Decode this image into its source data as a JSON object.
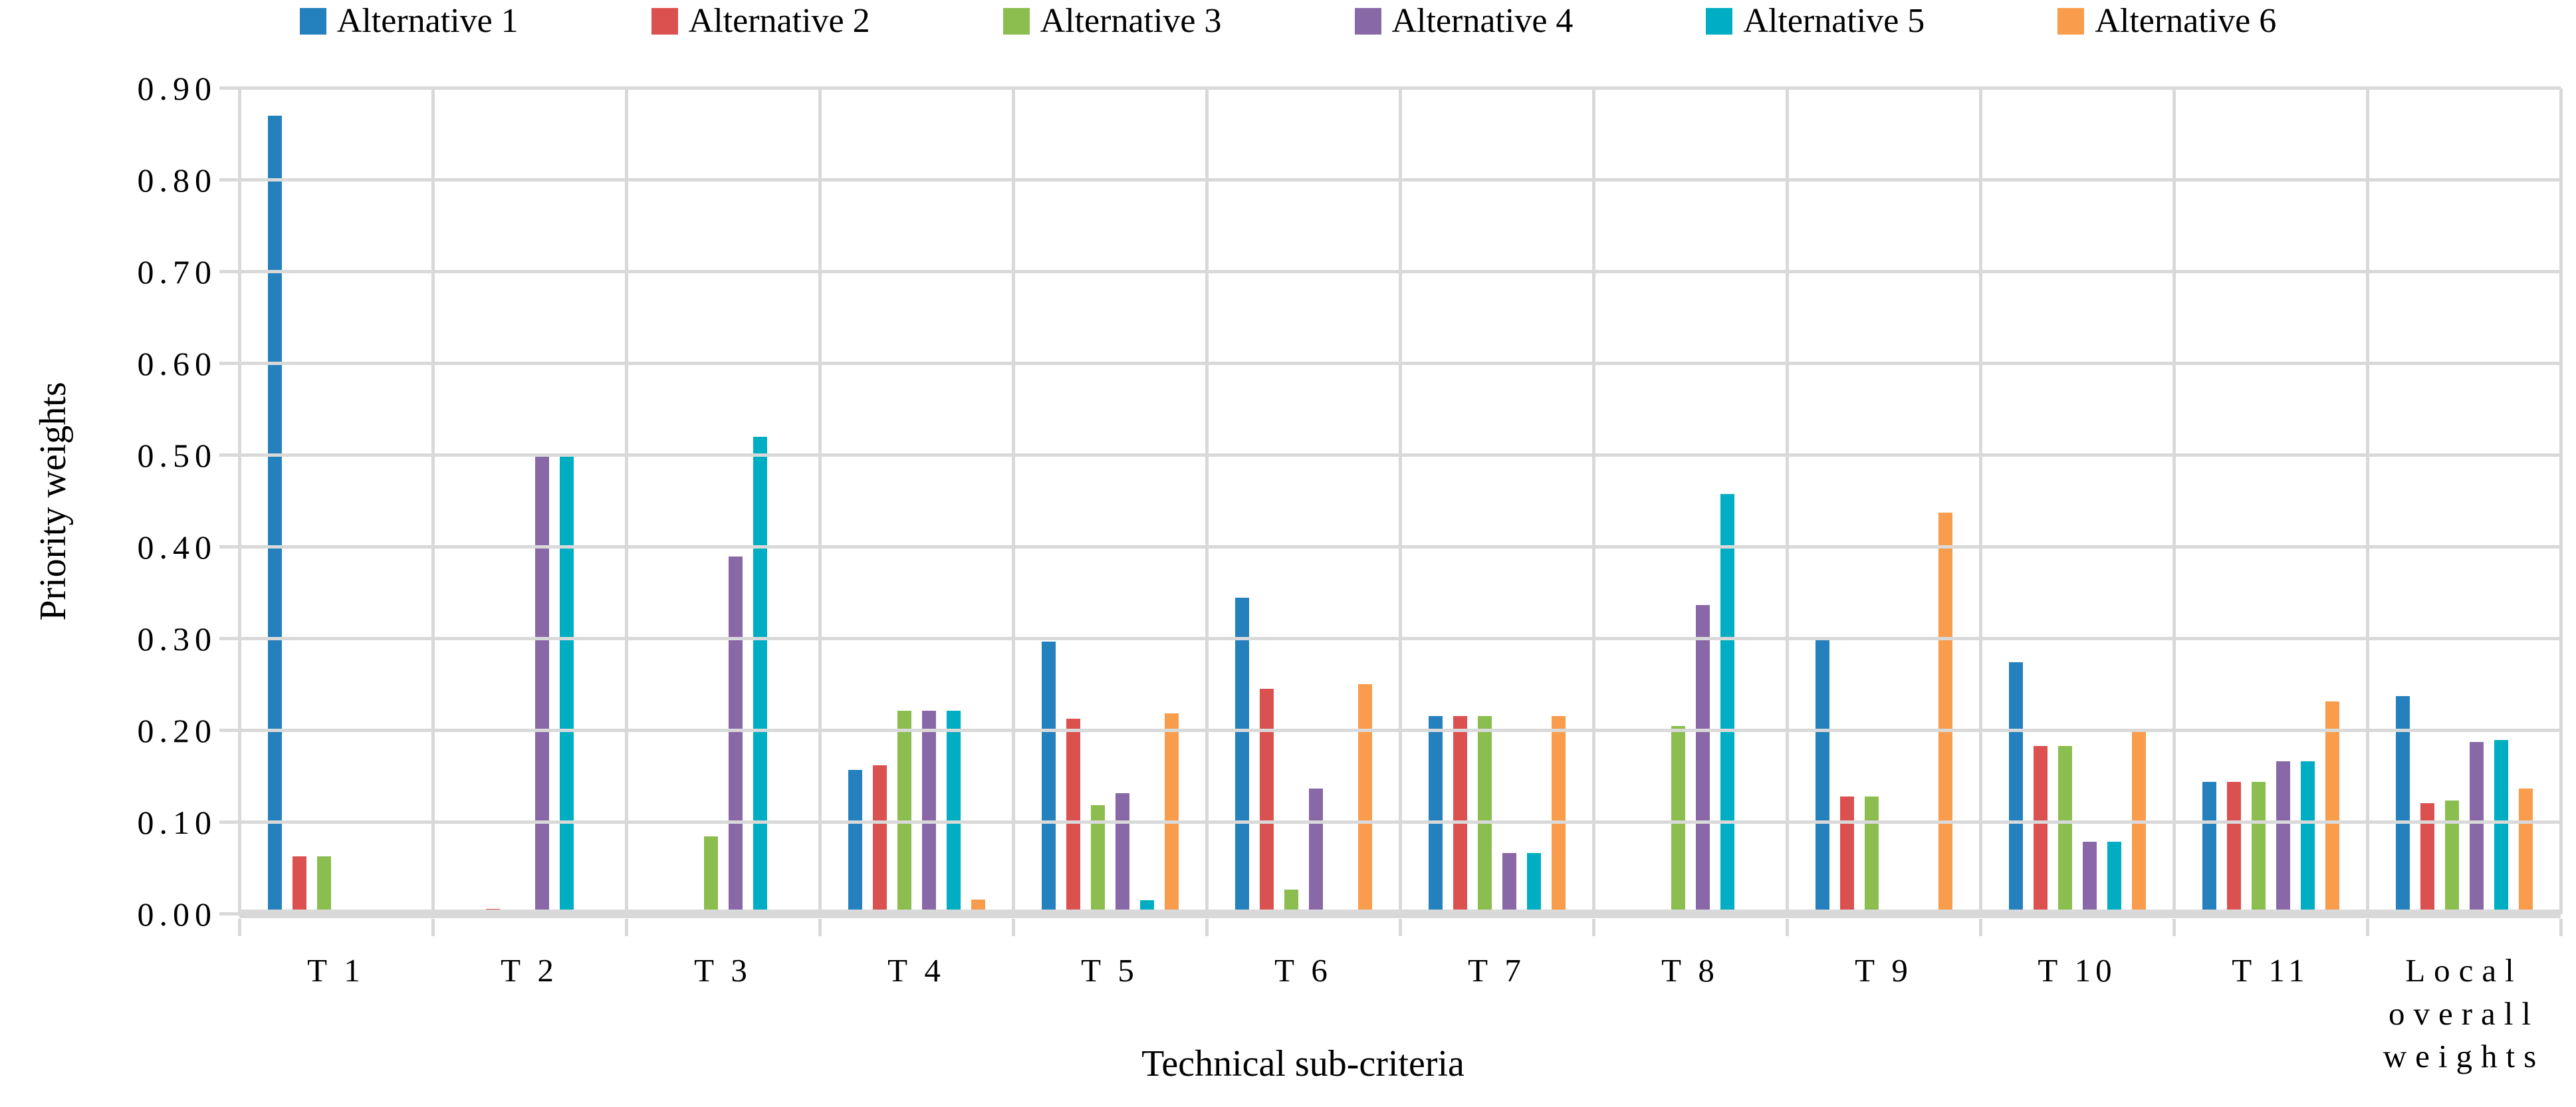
{
  "chart_data": {
    "type": "bar",
    "title": "",
    "xlabel": "Technical sub-criteria",
    "ylabel": "Priority weights",
    "ylim": [
      0,
      0.9
    ],
    "ytick_step": 0.1,
    "ytick_labels": [
      "0.00",
      "0.10",
      "0.20",
      "0.30",
      "0.40",
      "0.50",
      "0.60",
      "0.70",
      "0.80",
      "0.90"
    ],
    "grid": true,
    "legend_position": "top",
    "grid_color": "#d9d9d9",
    "categories": [
      "T 1",
      "T 2",
      "T 3",
      "T 4",
      "T 5",
      "T 6",
      "T 7",
      "T 8",
      "T 9",
      "T 10",
      "T 11",
      "Local overall weights"
    ],
    "last_category_lines": [
      "Local",
      "overall",
      "weights"
    ],
    "series": [
      {
        "name": "Alternative 1",
        "color": "#2580BE",
        "values": [
          0.87,
          0.005,
          0.005,
          0.157,
          0.297,
          0.345,
          0.216,
          0.005,
          0.301,
          0.275,
          0.144,
          0.238
        ]
      },
      {
        "name": "Alternative 2",
        "color": "#DB5150",
        "values": [
          0.063,
          0.006,
          0.005,
          0.162,
          0.213,
          0.246,
          0.216,
          0.005,
          0.128,
          0.183,
          0.144,
          0.121
        ]
      },
      {
        "name": "Alternative 3",
        "color": "#8BBE4F",
        "values": [
          0.063,
          0.005,
          0.085,
          0.222,
          0.119,
          0.027,
          0.216,
          0.205,
          0.128,
          0.183,
          0.144,
          0.124
        ]
      },
      {
        "name": "Alternative 4",
        "color": "#8968A8",
        "values": [
          0.005,
          0.5,
          0.39,
          0.222,
          0.132,
          0.137,
          0.067,
          0.337,
          0.004,
          0.079,
          0.167,
          0.188
        ]
      },
      {
        "name": "Alternative 5",
        "color": "#00AEC4",
        "values": [
          0.005,
          0.5,
          0.52,
          0.222,
          0.015,
          0.0,
          0.067,
          0.458,
          0.004,
          0.079,
          0.167,
          0.19
        ]
      },
      {
        "name": "Alternative 6",
        "color": "#F99C4C",
        "values": [
          0.005,
          0.005,
          0.005,
          0.016,
          0.219,
          0.251,
          0.216,
          0.005,
          0.438,
          0.2,
          0.232,
          0.137
        ]
      }
    ]
  }
}
